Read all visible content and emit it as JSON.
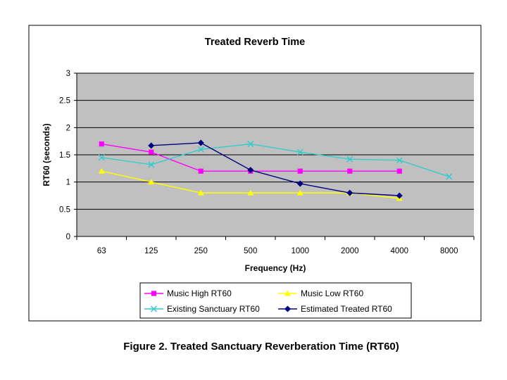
{
  "chart_data": {
    "type": "line",
    "title": "Treated Reverb Time",
    "xlabel": "Frequency (Hz)",
    "ylabel": "RT60 (seconds)",
    "categories": [
      "63",
      "125",
      "250",
      "500",
      "1000",
      "2000",
      "4000",
      "8000"
    ],
    "ylim": [
      0,
      3
    ],
    "yticks": [
      "0",
      "0.5",
      "1",
      "1.5",
      "2",
      "2.5",
      "3"
    ],
    "grid": true,
    "plot_background": "#c0c0c0",
    "legend_position": "bottom",
    "series": [
      {
        "name": "Music High RT60",
        "color": "#ff00ff",
        "marker": "square",
        "values": [
          1.7,
          1.55,
          1.2,
          1.2,
          1.2,
          1.2,
          1.2,
          null
        ]
      },
      {
        "name": "Music Low RT60",
        "color": "#ffff00",
        "marker": "triangle",
        "values": [
          1.2,
          1.0,
          0.8,
          0.8,
          0.8,
          0.8,
          0.7,
          null
        ]
      },
      {
        "name": "Existing Sanctuary RT60",
        "color": "#33cccc",
        "marker": "x",
        "values": [
          1.45,
          1.32,
          1.6,
          1.7,
          1.55,
          1.42,
          1.4,
          1.1
        ]
      },
      {
        "name": "Estimated Treated RT60",
        "color": "#000080",
        "marker": "diamond",
        "values": [
          null,
          1.67,
          1.72,
          1.22,
          0.97,
          0.8,
          0.75,
          null
        ]
      }
    ]
  },
  "caption": "Figure 2.  Treated Sanctuary Reverberation Time (RT60)"
}
